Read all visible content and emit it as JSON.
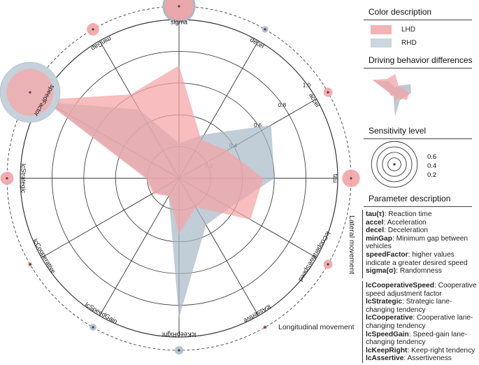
{
  "chart_data": {
    "type": "radar",
    "axes": [
      "tau",
      "accel",
      "decel",
      "sigma",
      "minGap",
      "speedFactor",
      "lcStrategic",
      "lcCooperative",
      "lcSpeedGain",
      "lcKeepRight",
      "lcAssertive",
      "lcCooperativeSpeed"
    ],
    "axis_label_display": [
      "tau",
      "accel",
      "decel",
      "sigma",
      "minGap",
      "speedFactor",
      "lcStrategic",
      "lcCooperative",
      "lcSpeedGain",
      "lcKeepRight",
      "lcAssertive",
      "lcCooperativeSpeed"
    ],
    "radial_ticks": [
      "0.2",
      "0.4",
      "0.6",
      "0.8",
      "1.0"
    ],
    "radial_tick_values": [
      0.2,
      0.4,
      0.6,
      0.8,
      1.0
    ],
    "rlim": [
      0,
      1.0
    ],
    "series": [
      {
        "name": "LHD",
        "color": "#f4a3a6",
        "values": [
          0.53,
          0.35,
          0.28,
          0.71,
          0.61,
          0.99,
          0.21,
          0.19,
          0.13,
          0.35,
          0.21,
          0.52
        ]
      },
      {
        "name": "RHD",
        "color": "#a7b8c6",
        "values": [
          0.6,
          0.67,
          0.32,
          0.22,
          0.5,
          0.96,
          0.2,
          0.18,
          0.13,
          0.88,
          0.34,
          0.37
        ]
      }
    ],
    "sensitivity": [
      0.5,
      0.22,
      0.14,
      1.0,
      0.33,
      1.0,
      0.35,
      0.06,
      0.15,
      0.2,
      0.06,
      0.22
    ],
    "sensitivity_color": [
      "lhd",
      "lhd",
      "rhd",
      "lhd",
      "lhd",
      "rhd",
      "lhd",
      "lhd",
      "rhd",
      "rhd",
      "lhd",
      "lhd"
    ]
  },
  "legend": {
    "color_title": "Color description",
    "lhd_label": "LHD",
    "rhd_label": "RHD",
    "lhd_color": "#f4b3b5",
    "rhd_color": "#cbd6df"
  },
  "differences_title": "Driving behavior differences",
  "sensitivity_panel": {
    "title": "Sensitivity level",
    "labels": [
      "0.6",
      "0.4",
      "0.2"
    ]
  },
  "params": {
    "title": "Parameter description",
    "lateral_label": "Lateral movement",
    "longitudinal_label": "Longitudinal movement",
    "lateral": [
      {
        "name": "tau(τ)",
        "desc": ": Reaction time"
      },
      {
        "name": "accel",
        "desc": ": Acceleration"
      },
      {
        "name": "decel",
        "desc": ": Deceleration"
      },
      {
        "name": "minGap",
        "desc": ": Minimum gap between vehicles"
      },
      {
        "name": "speedFactor",
        "desc": ": higher values indicate a greater desired speed"
      },
      {
        "name": "sigma(σ)",
        "desc": ": Randomness"
      }
    ],
    "longitudinal": [
      {
        "name": "lcCooperativeSpeed",
        "desc": ": Cooperative speed adjustment factor"
      },
      {
        "name": "lcStrategic",
        "desc": ": Strategic lane-changing tendency"
      },
      {
        "name": "lcCooperative",
        "desc": ": Cooperative lane-changing tendency"
      },
      {
        "name": "lcSpeedGain",
        "desc": ": Speed-gain lane-changing tendency"
      },
      {
        "name": "lcKeepRight",
        "desc": ": Keep-right tendency"
      },
      {
        "name": "lcAssertive",
        "desc": ": Assertiveness"
      }
    ]
  }
}
